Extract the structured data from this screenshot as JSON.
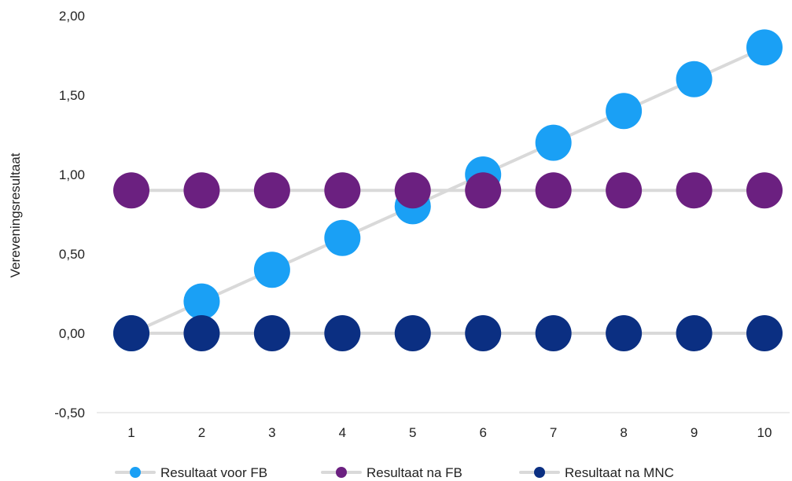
{
  "chart_data": {
    "type": "line",
    "ylabel": "Vereveningsresultaat",
    "xlabel": "",
    "x": [
      1,
      2,
      3,
      4,
      5,
      6,
      7,
      8,
      9,
      10
    ],
    "x_tick_labels": [
      "1",
      "2",
      "3",
      "4",
      "5",
      "6",
      "7",
      "8",
      "9",
      "10"
    ],
    "ylim": [
      -0.5,
      2.0
    ],
    "y_ticks": [
      -0.5,
      0.0,
      0.5,
      1.0,
      1.5,
      2.0
    ],
    "y_tick_labels": [
      "-0,50",
      "0,00",
      "0,50",
      "1,00",
      "1,50",
      "2,00"
    ],
    "grid": false,
    "legend_position": "bottom",
    "line_color": "#d9d9d9",
    "series": [
      {
        "name": "Resultaat voor FB",
        "color": "#1aa0f5",
        "values": [
          0.0,
          0.2,
          0.4,
          0.6,
          0.8,
          1.0,
          1.2,
          1.4,
          1.6,
          1.8
        ]
      },
      {
        "name": "Resultaat na FB",
        "color": "#6b2080",
        "values": [
          0.9,
          0.9,
          0.9,
          0.9,
          0.9,
          0.9,
          0.9,
          0.9,
          0.9,
          0.9
        ]
      },
      {
        "name": "Resultaat na MNC",
        "color": "#0b2f82",
        "values": [
          0.0,
          0.0,
          0.0,
          0.0,
          0.0,
          0.0,
          0.0,
          0.0,
          0.0,
          0.0
        ]
      }
    ]
  }
}
